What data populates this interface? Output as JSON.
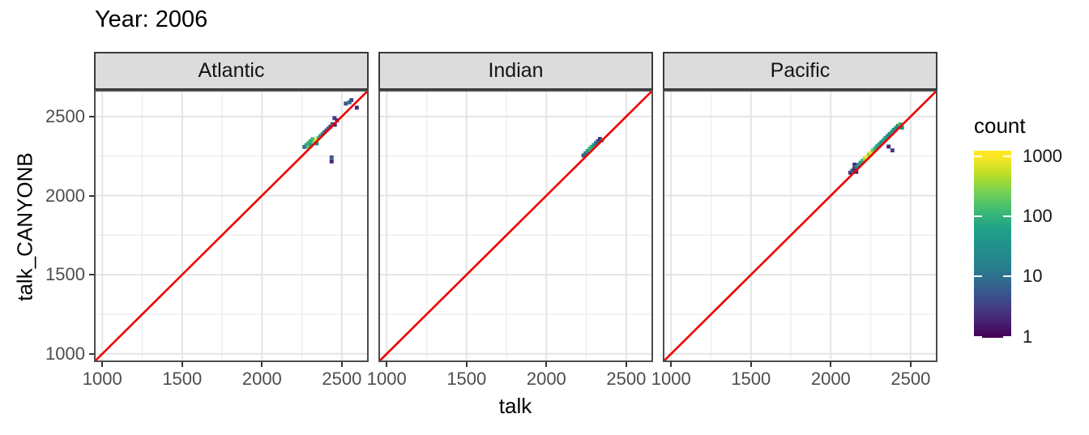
{
  "title": "Year: 2006",
  "axes": {
    "x_label": "talk",
    "y_label": "talk_CANYONB",
    "x_ticks": [
      1000,
      1500,
      2000,
      2500
    ],
    "y_ticks": [
      1000,
      1500,
      2000,
      2500
    ],
    "x_minor_ticks": [
      1250,
      1750,
      2250
    ],
    "y_minor_ticks": [
      1250,
      1750,
      2250
    ]
  },
  "legend": {
    "title": "count",
    "ticks": [
      1,
      10,
      100,
      1000
    ],
    "tick_labels": [
      "1",
      "10",
      "100",
      "1000"
    ],
    "transform": "log10"
  },
  "colors": {
    "reference_line": "#EE0000",
    "panel_border": "#4d4d4d",
    "strip_background": "#DCDCDC",
    "strip_border": "#3a3a3a",
    "grid_major": "#E4E4E4",
    "grid_minor": "#EFEFEF",
    "axis_text": "#4d4d4d",
    "tick_mark": "#333333",
    "viridis_stops": [
      [
        0.0,
        "#440154"
      ],
      [
        0.1,
        "#482878"
      ],
      [
        0.2,
        "#3E4A89"
      ],
      [
        0.3,
        "#31688E"
      ],
      [
        0.4,
        "#26828E"
      ],
      [
        0.5,
        "#21918C"
      ],
      [
        0.6,
        "#1FA187"
      ],
      [
        0.7,
        "#3FBC73"
      ],
      [
        0.8,
        "#74D055"
      ],
      [
        0.9,
        "#BDDF26"
      ],
      [
        1.0,
        "#FDE725"
      ]
    ]
  },
  "chart_data": {
    "type": "heatmap",
    "subtype": "binned-2d-scatter",
    "title": "Year: 2006",
    "xlabel": "talk",
    "ylabel": "talk_CANYONB",
    "x_range": [
      958,
      2658
    ],
    "y_range": [
      958,
      2658
    ],
    "grid": "on",
    "legend_position": "right",
    "bin_size": 25,
    "color_scale": {
      "palette": "viridis",
      "transform": "log10",
      "domain": [
        1,
        1000
      ],
      "legend_title": "count",
      "legend_ticks": [
        1,
        10,
        100,
        1000
      ]
    },
    "reference_line": {
      "equation": "y = x",
      "color": "#EE0000"
    },
    "facets": [
      {
        "name": "Atlantic",
        "bins": [
          [
            2266,
            2308,
            10
          ],
          [
            2279,
            2320,
            40
          ],
          [
            2291,
            2332,
            100
          ],
          [
            2292,
            2306,
            200
          ],
          [
            2304,
            2344,
            80
          ],
          [
            2306,
            2318,
            60
          ],
          [
            2317,
            2356,
            100
          ],
          [
            2329,
            2342,
            300
          ],
          [
            2341,
            2352,
            1000
          ],
          [
            2342,
            2330,
            30
          ],
          [
            2354,
            2364,
            150
          ],
          [
            2366,
            2376,
            60
          ],
          [
            2379,
            2388,
            25
          ],
          [
            2391,
            2400,
            10
          ],
          [
            2404,
            2412,
            5
          ],
          [
            2416,
            2424,
            8
          ],
          [
            2429,
            2436,
            3
          ],
          [
            2441,
            2452,
            6
          ],
          [
            2454,
            2490,
            3
          ],
          [
            2456,
            2448,
            2
          ],
          [
            2470,
            2476,
            2
          ],
          [
            2525,
            2582,
            5
          ],
          [
            2548,
            2590,
            10
          ],
          [
            2560,
            2604,
            4
          ],
          [
            2594,
            2556,
            2
          ],
          [
            2436,
            2242,
            6
          ],
          [
            2436,
            2216,
            2
          ]
        ]
      },
      {
        "name": "Indian",
        "bins": [
          [
            2232,
            2254,
            6
          ],
          [
            2245,
            2268,
            15
          ],
          [
            2258,
            2282,
            40
          ],
          [
            2271,
            2296,
            100
          ],
          [
            2284,
            2308,
            80
          ],
          [
            2297,
            2320,
            40
          ],
          [
            2310,
            2332,
            15
          ],
          [
            2322,
            2344,
            6
          ],
          [
            2335,
            2358,
            2
          ],
          [
            2347,
            2350,
            12
          ]
        ]
      },
      {
        "name": "Pacific",
        "bins": [
          [
            2122,
            2145,
            3
          ],
          [
            2135,
            2158,
            6
          ],
          [
            2148,
            2170,
            2
          ],
          [
            2149,
            2196,
            2
          ],
          [
            2160,
            2150,
            2
          ],
          [
            2161,
            2182,
            15
          ],
          [
            2174,
            2195,
            40
          ],
          [
            2187,
            2208,
            60
          ],
          [
            2200,
            2221,
            100
          ],
          [
            2213,
            2234,
            400
          ],
          [
            2226,
            2247,
            1000
          ],
          [
            2239,
            2260,
            300
          ],
          [
            2252,
            2273,
            800
          ],
          [
            2265,
            2286,
            200
          ],
          [
            2278,
            2299,
            100
          ],
          [
            2291,
            2312,
            60
          ],
          [
            2304,
            2325,
            50
          ],
          [
            2317,
            2338,
            40
          ],
          [
            2330,
            2351,
            60
          ],
          [
            2343,
            2364,
            50
          ],
          [
            2356,
            2377,
            30
          ],
          [
            2369,
            2390,
            25
          ],
          [
            2382,
            2403,
            60
          ],
          [
            2395,
            2416,
            20
          ],
          [
            2408,
            2428,
            40
          ],
          [
            2421,
            2441,
            15
          ],
          [
            2434,
            2452,
            300
          ],
          [
            2440,
            2448,
            60
          ],
          [
            2446,
            2430,
            25
          ],
          [
            2362,
            2310,
            2
          ],
          [
            2386,
            2286,
            3
          ]
        ]
      }
    ]
  }
}
